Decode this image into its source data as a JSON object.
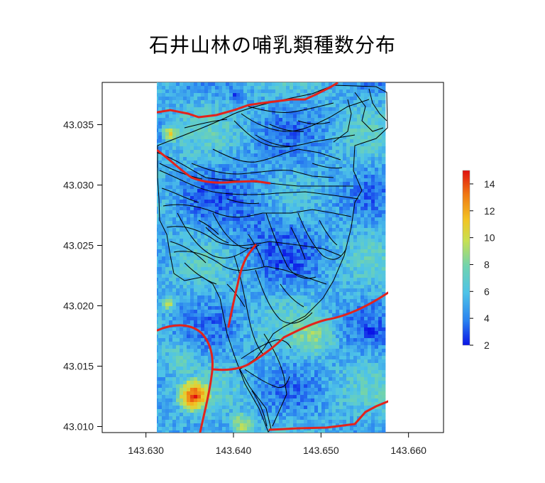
{
  "title": "石井山林の哺乳類種数分布",
  "chart_data": {
    "type": "heatmap",
    "title": "石井山林の哺乳類種数分布",
    "xlabel": "",
    "ylabel": "",
    "xlim": [
      143.625,
      143.664
    ],
    "ylim": [
      43.0095,
      43.0385
    ],
    "x_ticks": [
      "143.630",
      "143.640",
      "143.650",
      "143.660"
    ],
    "y_ticks": [
      "43.010",
      "43.015",
      "43.020",
      "43.025",
      "43.030",
      "43.035"
    ],
    "raster_extent": {
      "xmin": 143.631,
      "xmax": 143.6572,
      "ymin": 43.0095,
      "ymax": 43.0385
    },
    "colorbar": {
      "min": 2,
      "max": 15,
      "ticks": [
        "2",
        "4",
        "6",
        "8",
        "10",
        "12",
        "14"
      ],
      "colors": [
        "#0a14e6",
        "#2a82f0",
        "#4ec3e8",
        "#6fd3b0",
        "#c8e050",
        "#f3c322",
        "#f07a12",
        "#e01010"
      ]
    },
    "overlays": {
      "road_color": "#e3231b",
      "boundary_color": "#000000"
    }
  }
}
